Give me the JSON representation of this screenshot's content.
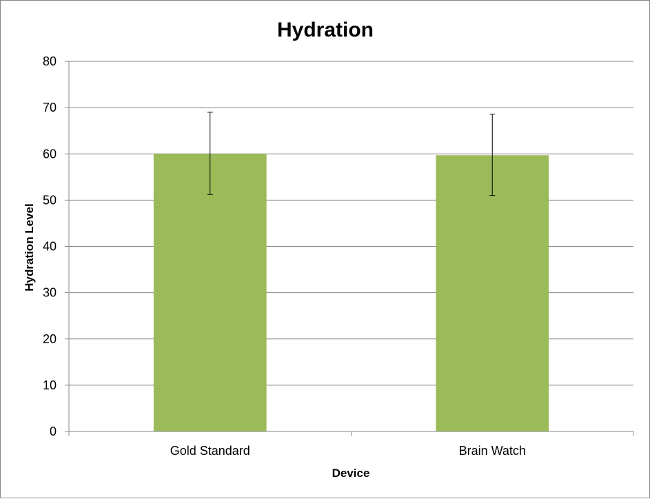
{
  "chart_data": {
    "type": "bar",
    "title": "Hydration",
    "xlabel": "Device",
    "ylabel": "Hydration Level",
    "categories": [
      "Gold Standard",
      "Brain Watch"
    ],
    "values": [
      60.0,
      59.7
    ],
    "error_bars": [
      {
        "low": 51.2,
        "high": 69.0
      },
      {
        "low": 51.0,
        "high": 68.6
      }
    ],
    "ylim": [
      0,
      80
    ],
    "yticks": [
      "0",
      "10",
      "20",
      "30",
      "40",
      "50",
      "60",
      "70",
      "80"
    ],
    "grid": true,
    "legend": "none",
    "bar_color": "#9BBB59",
    "grid_color": "#868686"
  }
}
